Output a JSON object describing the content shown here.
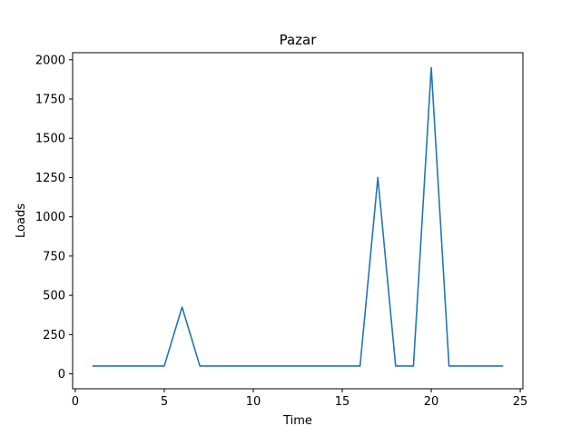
{
  "chart_data": {
    "type": "line",
    "title": "Pazar",
    "xlabel": "Time",
    "ylabel": "Loads",
    "xlim": [
      0,
      25
    ],
    "ylim": [
      0,
      2000
    ],
    "x_ticks": [
      0,
      5,
      10,
      15,
      20,
      25
    ],
    "y_ticks": [
      0,
      250,
      500,
      750,
      1000,
      1250,
      1500,
      1750,
      2000
    ],
    "grid": false,
    "series": [
      {
        "color": "#1f77b4",
        "x": [
          1,
          2,
          3,
          4,
          5,
          6,
          7,
          8,
          9,
          10,
          11,
          12,
          13,
          14,
          15,
          16,
          17,
          18,
          19,
          20,
          21,
          22,
          23,
          24
        ],
        "y": [
          50,
          50,
          50,
          50,
          50,
          425,
          50,
          50,
          50,
          50,
          50,
          50,
          50,
          50,
          50,
          50,
          1250,
          50,
          50,
          1950,
          50,
          50,
          50,
          50
        ]
      }
    ]
  }
}
